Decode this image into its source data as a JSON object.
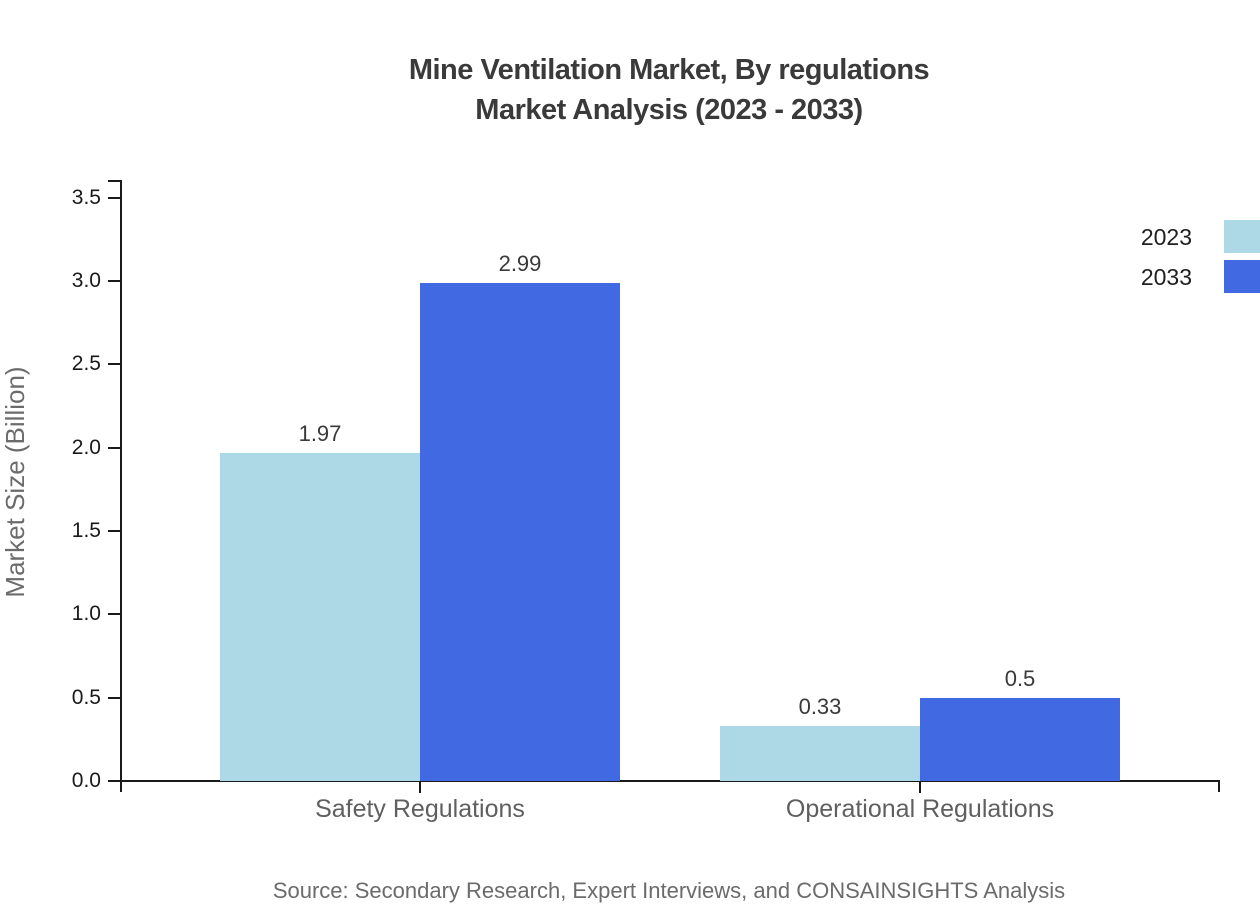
{
  "chart_data": {
    "type": "bar",
    "title_line1": "Mine Ventilation Market, By regulations",
    "title_line2": "Market Analysis (2023 - 2033)",
    "ylabel": "Market Size (Billion)",
    "categories": [
      "Safety Regulations",
      "Operational Regulations"
    ],
    "series": [
      {
        "name": "2023",
        "color": "#ADD8E6",
        "values": [
          1.97,
          0.33
        ],
        "value_labels": [
          "1.97",
          "0.33"
        ]
      },
      {
        "name": "2033",
        "color": "#4169E1",
        "values": [
          2.99,
          0.5
        ],
        "value_labels": [
          "2.99",
          "0.5"
        ]
      }
    ],
    "ytick_labels": [
      "0.0",
      "0.5",
      "1.0",
      "1.5",
      "2.0",
      "2.5",
      "3.0",
      "3.5"
    ],
    "ytick_values": [
      0.0,
      0.5,
      1.0,
      1.5,
      2.0,
      2.5,
      3.0,
      3.5
    ],
    "ylim": [
      0,
      3.6
    ],
    "legend_position": "upper right",
    "grid": false,
    "axis_color": "#1a1a1a",
    "title_color": "#3a3a3a",
    "muted_text_color": "#6b6b6b"
  },
  "source_note": "Source: Secondary Research, Expert Interviews, and CONSAINSIGHTS Analysis"
}
